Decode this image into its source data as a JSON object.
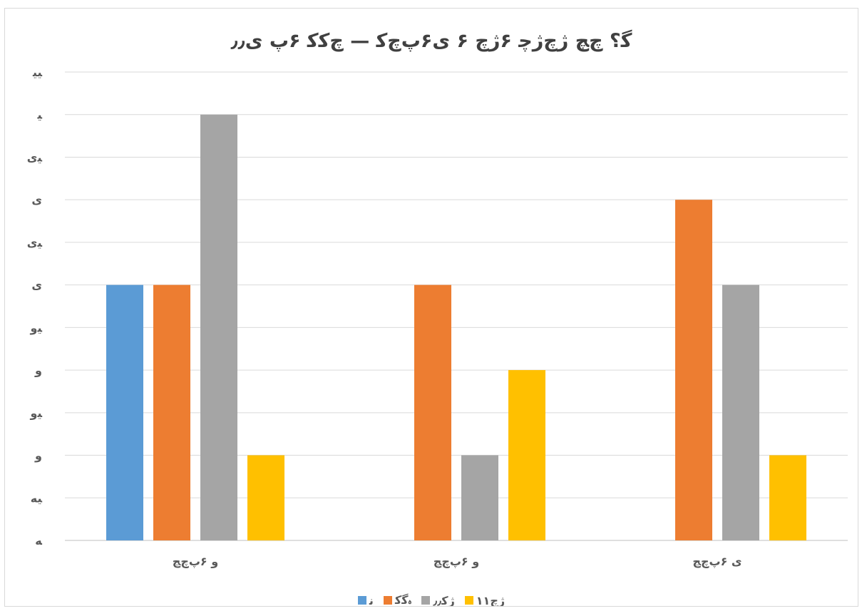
{
  "chart_data": {
    "type": "bar",
    "title": "ﮔ؟ ﭺﭻ ﮊﭺﮊﭼ ۶ﮊﭺ ۶ ﯼ۶ﭖﭺﮐ — ﭺﮐﮐ ۶ﭖ ﯼ٫٫",
    "categories": [
      "و ۶ﭖﭺﭷ",
      "و ۶ﭖﭺﭷ",
      "ﯼ ۶ﭖﭺﭷ"
    ],
    "y_tick_labels": [
      "ﻪ",
      "ﻴﻪ",
      "و",
      "ﻴو",
      "و",
      "ﻴو",
      "ﯼ",
      "ﻴﯼ",
      "ﯼ",
      "ﻴﯼ",
      "ﻴ",
      "ﻴﻴ"
    ],
    "ylim": [
      0,
      5.5
    ],
    "grid": true,
    "legend_position": "bottom",
    "series": [
      {
        "name": "ﻧ",
        "color": "#5b9bd5",
        "values": [
          3,
          0,
          0
        ]
      },
      {
        "name": "ﮦﮔﮐ",
        "color": "#ed7d31",
        "values": [
          3,
          3,
          4
        ]
      },
      {
        "name": "ﮊﮐ٫٫",
        "color": "#a5a5a5",
        "values": [
          5,
          1,
          3
        ]
      },
      {
        "name": "ﮊﭺ١١",
        "color": "#ffc000",
        "values": [
          1,
          2,
          1
        ]
      }
    ]
  }
}
